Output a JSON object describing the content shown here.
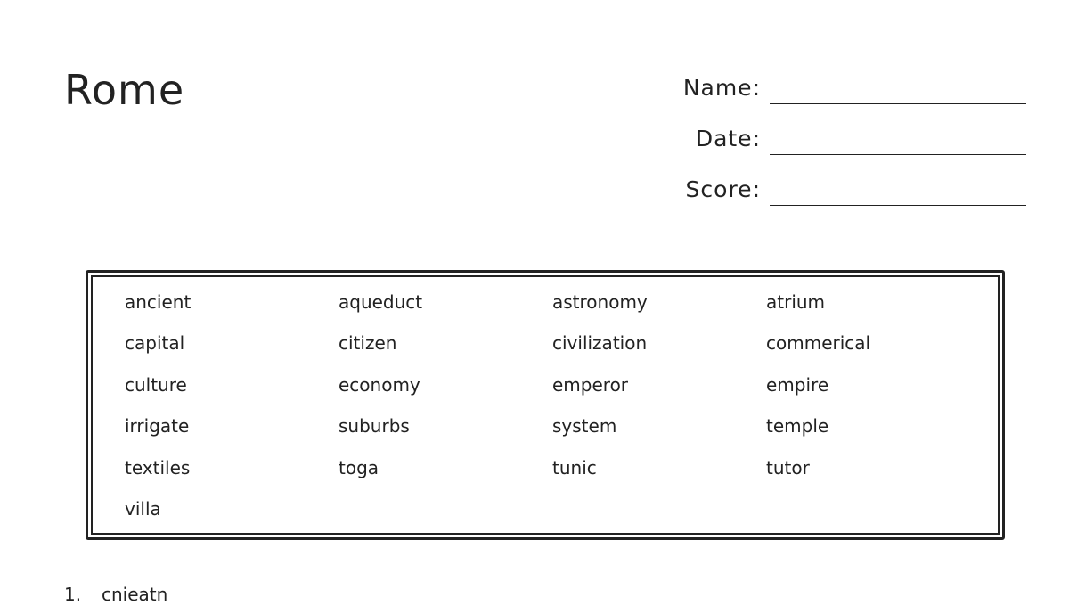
{
  "title": "Rome",
  "fields": [
    {
      "label": "Name:"
    },
    {
      "label": "Date:"
    },
    {
      "label": "Score:"
    }
  ],
  "word_bank": [
    [
      "ancient",
      "aqueduct",
      "astronomy",
      "atrium"
    ],
    [
      "capital",
      "citizen",
      "civilization",
      "commerical"
    ],
    [
      "culture",
      "economy",
      "emperor",
      "empire"
    ],
    [
      "irrigate",
      "suburbs",
      "system",
      "temple"
    ],
    [
      "textiles",
      "toga",
      "tunic",
      "tutor"
    ],
    [
      "villa"
    ]
  ],
  "questions": [
    {
      "number": "1.",
      "scrambled": "cnieatn"
    }
  ]
}
